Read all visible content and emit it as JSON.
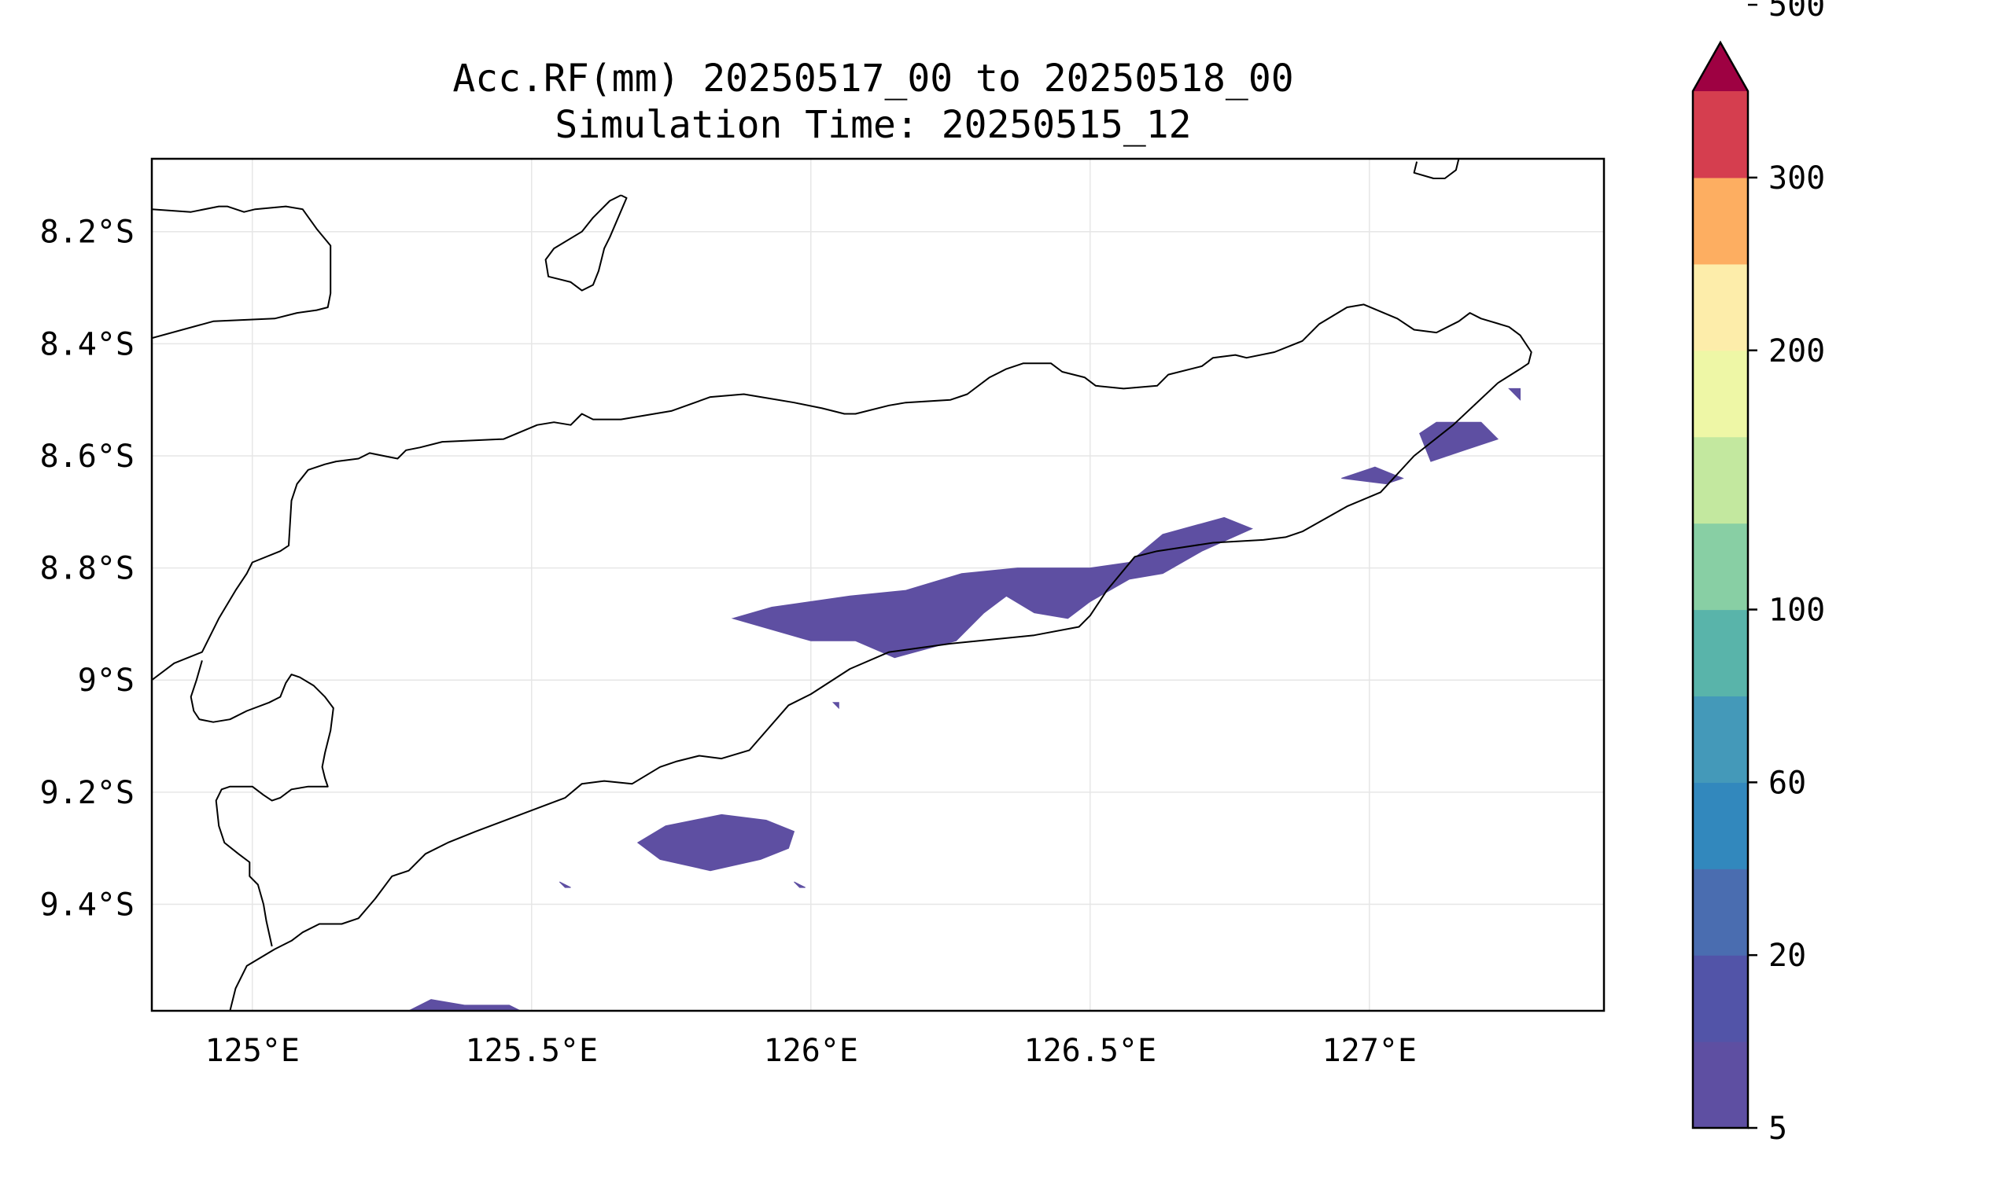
{
  "title": {
    "line1": "Acc.RF(mm) 20250517_00 to 20250518_00",
    "line2": "Simulation Time: 20250515_12"
  },
  "map": {
    "lon_range": [
      124.82,
      127.42
    ],
    "lat_range": [
      -9.59,
      -8.07
    ],
    "lon_ticks": [
      {
        "value": 125.0,
        "label": "125°E"
      },
      {
        "value": 125.5,
        "label": "125.5°E"
      },
      {
        "value": 126.0,
        "label": "126°E"
      },
      {
        "value": 126.5,
        "label": "126.5°E"
      },
      {
        "value": 127.0,
        "label": "127°E"
      }
    ],
    "lat_ticks": [
      {
        "value": -8.2,
        "label": "8.2°S"
      },
      {
        "value": -8.4,
        "label": "8.4°S"
      },
      {
        "value": -8.6,
        "label": "8.6°S"
      },
      {
        "value": -8.8,
        "label": "8.8°S"
      },
      {
        "value": -9.0,
        "label": "9°S"
      },
      {
        "value": -9.2,
        "label": "9.2°S"
      },
      {
        "value": -9.4,
        "label": "9.4°S"
      }
    ],
    "grid": true,
    "coastline_color": "#000000"
  },
  "colorbar": {
    "levels": [
      5,
      10,
      20,
      40,
      60,
      80,
      100,
      125,
      150,
      200,
      250,
      300,
      350,
      500
    ],
    "colors": [
      "#5e4fa2",
      "#5254a8",
      "#4a6db0",
      "#3288bd",
      "#4499b9",
      "#59b4aa",
      "#88cfa4",
      "#c3e89f",
      "#eef7a6",
      "#fdedaa",
      "#fdae61",
      "#d53e4f"
    ],
    "extend_color": "#9e0142",
    "ticks": [
      {
        "value": 5,
        "label": "5"
      },
      {
        "value": 20,
        "label": "20"
      },
      {
        "value": 60,
        "label": "60"
      },
      {
        "value": 100,
        "label": "100"
      },
      {
        "value": 200,
        "label": "200"
      },
      {
        "value": 300,
        "label": "300"
      },
      {
        "value": 500,
        "label": "500"
      }
    ]
  },
  "chart_data": {
    "type": "map",
    "variable": "Acc.RF(mm)",
    "rain_areas": [
      {
        "level": "5-10",
        "lonlat": [
          [
            125.86,
            -8.89
          ],
          [
            125.93,
            -8.87
          ],
          [
            126.07,
            -8.85
          ],
          [
            126.17,
            -8.84
          ],
          [
            126.27,
            -8.81
          ],
          [
            126.37,
            -8.8
          ],
          [
            126.5,
            -8.8
          ],
          [
            126.57,
            -8.79
          ],
          [
            126.63,
            -8.74
          ],
          [
            126.74,
            -8.71
          ],
          [
            126.79,
            -8.73
          ],
          [
            126.7,
            -8.77
          ],
          [
            126.63,
            -8.81
          ],
          [
            126.57,
            -8.82
          ],
          [
            126.5,
            -8.86
          ],
          [
            126.46,
            -8.89
          ],
          [
            126.4,
            -8.88
          ],
          [
            126.35,
            -8.85
          ],
          [
            126.31,
            -8.88
          ],
          [
            126.26,
            -8.93
          ],
          [
            126.15,
            -8.96
          ],
          [
            126.08,
            -8.93
          ],
          [
            126.0,
            -8.93
          ]
        ]
      },
      {
        "level": "5-10",
        "lonlat": [
          [
            125.84,
            -9.24
          ],
          [
            125.92,
            -9.25
          ],
          [
            125.97,
            -9.27
          ],
          [
            125.96,
            -9.3
          ],
          [
            125.91,
            -9.32
          ],
          [
            125.82,
            -9.34
          ],
          [
            125.73,
            -9.32
          ],
          [
            125.69,
            -9.29
          ],
          [
            125.74,
            -9.26
          ]
        ]
      },
      {
        "level": "5-10",
        "lonlat": [
          [
            127.09,
            -8.56
          ],
          [
            127.12,
            -8.54
          ],
          [
            127.2,
            -8.54
          ],
          [
            127.23,
            -8.57
          ],
          [
            127.17,
            -8.59
          ],
          [
            127.11,
            -8.61
          ]
        ]
      },
      {
        "level": "5-10",
        "lonlat": [
          [
            126.95,
            -8.64
          ],
          [
            127.01,
            -8.62
          ],
          [
            127.06,
            -8.64
          ],
          [
            127.03,
            -8.65
          ]
        ]
      },
      {
        "level": "5-10",
        "lonlat": [
          [
            127.25,
            -8.48
          ],
          [
            127.27,
            -8.48
          ],
          [
            127.27,
            -8.5
          ]
        ]
      },
      {
        "level": "5-10",
        "lonlat": [
          [
            125.55,
            -9.36
          ],
          [
            125.57,
            -9.37
          ],
          [
            125.56,
            -9.37
          ]
        ]
      },
      {
        "level": "5-10",
        "lonlat": [
          [
            125.97,
            -9.36
          ],
          [
            125.99,
            -9.37
          ],
          [
            125.98,
            -9.37
          ]
        ]
      },
      {
        "level": "5-10",
        "lonlat": [
          [
            126.04,
            -9.04
          ],
          [
            126.05,
            -9.04
          ],
          [
            126.05,
            -9.05
          ]
        ]
      },
      {
        "level": "5-10",
        "lonlat": [
          [
            125.28,
            -9.59
          ],
          [
            125.32,
            -9.57
          ],
          [
            125.38,
            -9.58
          ],
          [
            125.46,
            -9.58
          ],
          [
            125.48,
            -9.59
          ]
        ]
      }
    ],
    "coastlines": [
      [
        [
          124.82,
          -8.16
        ],
        [
          124.89,
          -8.165
        ],
        [
          124.94,
          -8.155
        ],
        [
          124.955,
          -8.155
        ],
        [
          124.985,
          -8.165
        ],
        [
          125.005,
          -8.16
        ],
        [
          125.06,
          -8.155
        ],
        [
          125.09,
          -8.16
        ],
        [
          125.115,
          -8.195
        ],
        [
          125.14,
          -8.225
        ],
        [
          125.14,
          -8.31
        ],
        [
          125.135,
          -8.335
        ],
        [
          125.115,
          -8.34
        ],
        [
          125.08,
          -8.345
        ],
        [
          125.04,
          -8.355
        ],
        [
          124.93,
          -8.36
        ],
        [
          124.82,
          -8.39
        ]
      ],
      [
        [
          125.66,
          -8.135
        ],
        [
          125.67,
          -8.14
        ],
        [
          125.64,
          -8.21
        ],
        [
          125.63,
          -8.23
        ],
        [
          125.62,
          -8.27
        ],
        [
          125.61,
          -8.295
        ],
        [
          125.59,
          -8.305
        ],
        [
          125.57,
          -8.29
        ],
        [
          125.55,
          -8.285
        ],
        [
          125.53,
          -8.28
        ],
        [
          125.525,
          -8.25
        ],
        [
          125.54,
          -8.23
        ],
        [
          125.59,
          -8.2
        ],
        [
          125.61,
          -8.175
        ],
        [
          125.64,
          -8.145
        ],
        [
          125.66,
          -8.135
        ]
      ],
      [
        [
          124.82,
          -9.0
        ],
        [
          124.86,
          -8.97
        ],
        [
          124.91,
          -8.95
        ],
        [
          124.94,
          -8.89
        ],
        [
          124.97,
          -8.84
        ],
        [
          124.99,
          -8.81
        ],
        [
          125.0,
          -8.79
        ],
        [
          125.05,
          -8.77
        ],
        [
          125.065,
          -8.76
        ],
        [
          125.07,
          -8.68
        ],
        [
          125.08,
          -8.65
        ],
        [
          125.1,
          -8.625
        ],
        [
          125.13,
          -8.615
        ],
        [
          125.15,
          -8.61
        ],
        [
          125.19,
          -8.605
        ],
        [
          125.21,
          -8.595
        ],
        [
          125.235,
          -8.6
        ],
        [
          125.26,
          -8.605
        ],
        [
          125.275,
          -8.59
        ],
        [
          125.3,
          -8.585
        ],
        [
          125.34,
          -8.575
        ],
        [
          125.45,
          -8.57
        ],
        [
          125.51,
          -8.545
        ],
        [
          125.54,
          -8.54
        ],
        [
          125.57,
          -8.545
        ],
        [
          125.59,
          -8.525
        ],
        [
          125.61,
          -8.535
        ],
        [
          125.66,
          -8.535
        ],
        [
          125.75,
          -8.52
        ],
        [
          125.82,
          -8.495
        ],
        [
          125.88,
          -8.49
        ],
        [
          125.97,
          -8.505
        ],
        [
          126.02,
          -8.515
        ],
        [
          126.06,
          -8.525
        ],
        [
          126.08,
          -8.525
        ],
        [
          126.14,
          -8.51
        ],
        [
          126.17,
          -8.505
        ],
        [
          126.25,
          -8.5
        ],
        [
          126.28,
          -8.49
        ],
        [
          126.32,
          -8.46
        ],
        [
          126.35,
          -8.445
        ],
        [
          126.38,
          -8.435
        ],
        [
          126.43,
          -8.435
        ],
        [
          126.45,
          -8.45
        ],
        [
          126.49,
          -8.46
        ],
        [
          126.51,
          -8.475
        ],
        [
          126.56,
          -8.48
        ],
        [
          126.62,
          -8.475
        ],
        [
          126.64,
          -8.455
        ],
        [
          126.7,
          -8.44
        ],
        [
          126.72,
          -8.425
        ],
        [
          126.76,
          -8.42
        ],
        [
          126.78,
          -8.425
        ],
        [
          126.83,
          -8.415
        ],
        [
          126.88,
          -8.395
        ],
        [
          126.91,
          -8.365
        ],
        [
          126.96,
          -8.335
        ],
        [
          126.99,
          -8.33
        ],
        [
          127.05,
          -8.355
        ],
        [
          127.08,
          -8.375
        ],
        [
          127.12,
          -8.38
        ],
        [
          127.16,
          -8.36
        ],
        [
          127.18,
          -8.345
        ],
        [
          127.2,
          -8.355
        ],
        [
          127.25,
          -8.37
        ],
        [
          127.27,
          -8.385
        ],
        [
          127.29,
          -8.415
        ],
        [
          127.285,
          -8.435
        ],
        [
          127.27,
          -8.445
        ],
        [
          127.23,
          -8.47
        ],
        [
          127.15,
          -8.545
        ],
        [
          127.08,
          -8.6
        ],
        [
          127.02,
          -8.665
        ],
        [
          126.96,
          -8.69
        ],
        [
          126.88,
          -8.735
        ],
        [
          126.85,
          -8.745
        ],
        [
          126.81,
          -8.75
        ],
        [
          126.72,
          -8.755
        ],
        [
          126.62,
          -8.77
        ],
        [
          126.58,
          -8.78
        ],
        [
          126.53,
          -8.84
        ],
        [
          126.5,
          -8.885
        ],
        [
          126.48,
          -8.905
        ],
        [
          126.4,
          -8.92
        ],
        [
          126.25,
          -8.935
        ],
        [
          126.14,
          -8.95
        ],
        [
          126.07,
          -8.98
        ],
        [
          126.0,
          -9.025
        ],
        [
          125.96,
          -9.045
        ],
        [
          125.89,
          -9.125
        ],
        [
          125.84,
          -9.14
        ],
        [
          125.8,
          -9.135
        ],
        [
          125.76,
          -9.145
        ],
        [
          125.73,
          -9.155
        ],
        [
          125.68,
          -9.185
        ],
        [
          125.63,
          -9.18
        ],
        [
          125.59,
          -9.185
        ],
        [
          125.56,
          -9.21
        ],
        [
          125.52,
          -9.225
        ],
        [
          125.4,
          -9.27
        ],
        [
          125.35,
          -9.29
        ],
        [
          125.31,
          -9.31
        ],
        [
          125.28,
          -9.34
        ],
        [
          125.25,
          -9.35
        ],
        [
          125.22,
          -9.39
        ],
        [
          125.19,
          -9.425
        ],
        [
          125.16,
          -9.435
        ],
        [
          125.12,
          -9.435
        ],
        [
          125.09,
          -9.45
        ],
        [
          125.07,
          -9.465
        ],
        [
          125.04,
          -9.48
        ],
        [
          124.99,
          -9.51
        ],
        [
          124.97,
          -9.55
        ],
        [
          124.96,
          -9.59
        ]
      ],
      [
        [
          124.91,
          -8.965
        ],
        [
          124.9,
          -9.0
        ],
        [
          124.89,
          -9.03
        ],
        [
          124.895,
          -9.055
        ],
        [
          124.905,
          -9.07
        ],
        [
          124.93,
          -9.075
        ],
        [
          124.96,
          -9.07
        ],
        [
          124.99,
          -9.055
        ],
        [
          125.03,
          -9.04
        ],
        [
          125.05,
          -9.03
        ],
        [
          125.06,
          -9.005
        ],
        [
          125.07,
          -8.99
        ],
        [
          125.085,
          -8.995
        ],
        [
          125.11,
          -9.01
        ],
        [
          125.13,
          -9.03
        ],
        [
          125.145,
          -9.05
        ],
        [
          125.14,
          -9.09
        ],
        [
          125.13,
          -9.13
        ],
        [
          125.125,
          -9.155
        ],
        [
          125.13,
          -9.175
        ],
        [
          125.135,
          -9.19
        ],
        [
          125.1,
          -9.19
        ],
        [
          125.07,
          -9.195
        ],
        [
          125.05,
          -9.21
        ],
        [
          125.035,
          -9.215
        ],
        [
          125.02,
          -9.205
        ],
        [
          125.0,
          -9.19
        ],
        [
          124.96,
          -9.19
        ],
        [
          124.945,
          -9.195
        ],
        [
          124.935,
          -9.215
        ],
        [
          124.94,
          -9.26
        ],
        [
          124.95,
          -9.29
        ],
        [
          124.975,
          -9.31
        ],
        [
          124.995,
          -9.325
        ],
        [
          124.995,
          -9.35
        ],
        [
          125.01,
          -9.365
        ],
        [
          125.02,
          -9.4
        ],
        [
          125.025,
          -9.43
        ],
        [
          125.035,
          -9.475
        ]
      ],
      [
        [
          127.16,
          -8.07
        ],
        [
          127.155,
          -8.09
        ],
        [
          127.135,
          -8.105
        ],
        [
          127.115,
          -8.105
        ],
        [
          127.08,
          -8.095
        ],
        [
          127.085,
          -8.075
        ]
      ]
    ]
  }
}
